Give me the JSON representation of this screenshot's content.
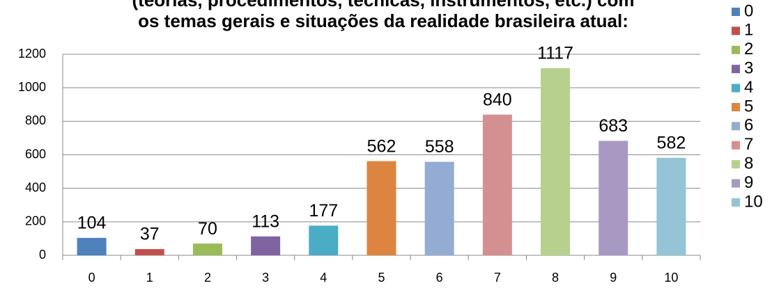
{
  "chart_data": {
    "type": "bar",
    "title": [
      "(teorias, procedimentos, técnicas, instrumentos, etc.) com",
      "os temas gerais e situações da realidade brasileira atual:"
    ],
    "categories": [
      "0",
      "1",
      "2",
      "3",
      "4",
      "5",
      "6",
      "7",
      "8",
      "9",
      "10"
    ],
    "values": [
      104,
      37,
      70,
      113,
      177,
      562,
      558,
      840,
      1117,
      683,
      582
    ],
    "colors": [
      "#4f81bd",
      "#c0504d",
      "#9bbb59",
      "#8064a2",
      "#4bacc6",
      "#dd8540",
      "#94acd4",
      "#d49090",
      "#b8d08e",
      "#a899c2",
      "#93c5d6"
    ],
    "ylim": [
      0,
      1200
    ],
    "yticks": [
      0,
      200,
      400,
      600,
      800,
      1000,
      1200
    ],
    "grid": true,
    "legend": "right"
  }
}
